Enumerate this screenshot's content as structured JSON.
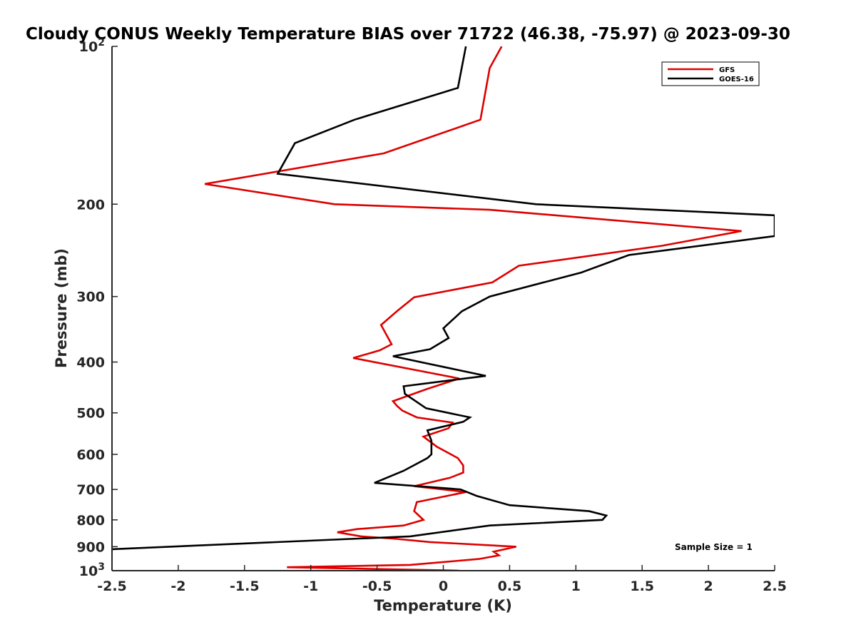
{
  "chart_data": {
    "type": "line",
    "title": "Cloudy CONUS Weekly Temperature BIAS over 71722 (46.38, -75.97) @ 2023-09-30",
    "xlabel": "Temperature (K)",
    "ylabel": "Pressure (mb)",
    "xlim": [
      -2.5,
      2.5
    ],
    "ylim": [
      100,
      1000
    ],
    "yscale": "log",
    "y_reversed": true,
    "grid": false,
    "x_ticks": [
      "-2.5",
      "-2",
      "-1.5",
      "-1",
      "-0.5",
      "0",
      "0.5",
      "1",
      "1.5",
      "2",
      "2.5"
    ],
    "y_ticks": [
      {
        "value": 100,
        "base": "10",
        "exp": "2"
      },
      {
        "value": 200,
        "label": "200"
      },
      {
        "value": 300,
        "label": "300"
      },
      {
        "value": 400,
        "label": "400"
      },
      {
        "value": 500,
        "label": "500"
      },
      {
        "value": 600,
        "label": "600"
      },
      {
        "value": 700,
        "label": "700"
      },
      {
        "value": 800,
        "label": "800"
      },
      {
        "value": 900,
        "label": "900"
      },
      {
        "value": 1000,
        "base": "10",
        "exp": "3"
      }
    ],
    "legend_position": "top-right",
    "annotation": "Sample Size = 1",
    "series": [
      {
        "name": "GFS",
        "color": "#dd0000",
        "x": [
          0.44,
          0.35,
          0.28,
          -0.45,
          -1.8,
          -0.82,
          0.35,
          2.25,
          1.65,
          0.57,
          0.37,
          -0.22,
          -0.35,
          -0.47,
          -0.39,
          -0.48,
          -0.68,
          0.12,
          -0.12,
          -0.38,
          -0.35,
          -0.31,
          -0.2,
          0.07,
          0.04,
          -0.15,
          -0.05,
          0.11,
          0.15,
          0.15,
          0.05,
          -0.22,
          0.17,
          -0.2,
          -0.22,
          -0.15,
          -0.3,
          -0.65,
          -0.8,
          -0.62,
          -0.35,
          -0.1,
          0.55,
          0.38,
          0.42,
          0.27,
          -0.25,
          -1.18,
          0.12
        ],
        "y": [
          100,
          110,
          138,
          160,
          183,
          200,
          205,
          225,
          240,
          262,
          282,
          301,
          320,
          340,
          370,
          380,
          393,
          430,
          450,
          475,
          485,
          495,
          510,
          522,
          535,
          555,
          580,
          610,
          630,
          650,
          665,
          690,
          708,
          740,
          770,
          800,
          820,
          833,
          845,
          860,
          870,
          882,
          900,
          920,
          935,
          950,
          975,
          985,
          1000
        ]
      },
      {
        "name": "GOES-16",
        "color": "#000000",
        "x": [
          0.17,
          0.11,
          -0.67,
          -1.12,
          -1.25,
          0.7,
          2.5,
          2.5,
          1.4,
          1.04,
          0.35,
          0.14,
          0.0,
          0.04,
          -0.1,
          -0.38,
          0.32,
          -0.3,
          -0.29,
          -0.13,
          0.2,
          0.15,
          -0.12,
          -0.09,
          -0.09,
          -0.12,
          -0.3,
          -0.52,
          0.13,
          0.25,
          0.5,
          1.1,
          1.23,
          1.2,
          0.35,
          -0.25,
          -2.5
        ],
        "y": [
          100,
          120,
          138,
          153,
          175,
          200,
          210,
          230,
          250,
          270,
          300,
          320,
          345,
          360,
          378,
          390,
          425,
          445,
          460,
          490,
          510,
          520,
          540,
          565,
          600,
          610,
          645,
          680,
          700,
          720,
          750,
          770,
          785,
          800,
          820,
          860,
          910
        ]
      }
    ]
  }
}
